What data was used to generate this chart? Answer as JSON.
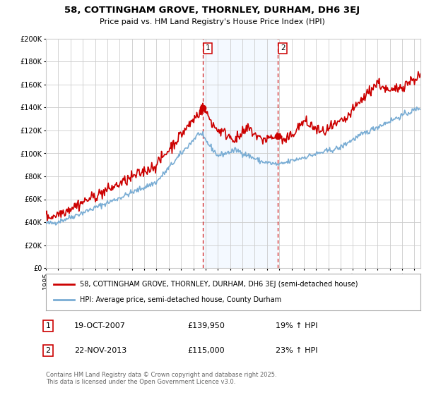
{
  "title": "58, COTTINGHAM GROVE, THORNLEY, DURHAM, DH6 3EJ",
  "subtitle": "Price paid vs. HM Land Registry's House Price Index (HPI)",
  "legend_line1": "58, COTTINGHAM GROVE, THORNLEY, DURHAM, DH6 3EJ (semi-detached house)",
  "legend_line2": "HPI: Average price, semi-detached house, County Durham",
  "sale1_date": "19-OCT-2007",
  "sale1_price": "£139,950",
  "sale1_hpi": "19% ↑ HPI",
  "sale2_date": "22-NOV-2013",
  "sale2_price": "£115,000",
  "sale2_hpi": "23% ↑ HPI",
  "footer": "Contains HM Land Registry data © Crown copyright and database right 2025.\nThis data is licensed under the Open Government Licence v3.0.",
  "red_color": "#cc0000",
  "blue_color": "#7aadd4",
  "shade_color": "#ddeeff",
  "grid_color": "#cccccc",
  "background_color": "#ffffff",
  "sale1_year": 2007.8,
  "sale2_year": 2013.9,
  "ylim_max": 200000,
  "ylim_min": 0,
  "xmin": 1995,
  "xmax": 2025.5
}
